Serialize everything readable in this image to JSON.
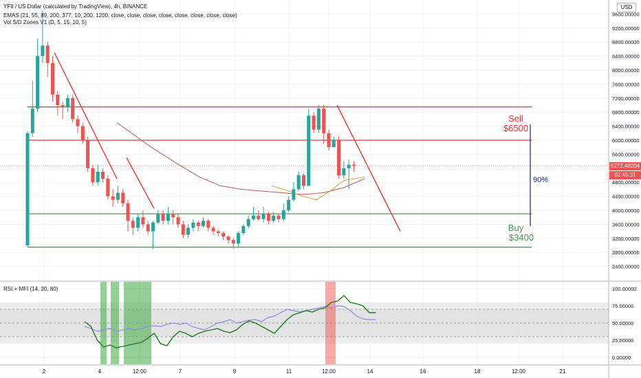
{
  "header": {
    "symbol_line": "YFII / US Dollar (calculated by TradingView), 4h, BINANCE",
    "ema_line": "EMAS (21, 55, 89, 200, 377, 10, 200, 1200, close, close, close, close, close, close, close, close)",
    "vol_line": "Vol S/D Zones V1 (D, 5, 15, 10, 5)",
    "currency": "USD"
  },
  "price_pane": {
    "current_price": "5272.48204",
    "countdown": "02:45:31",
    "colors": {
      "up": "#26a69a",
      "down": "#ef5350",
      "price_tag": "#ef5350",
      "countdown_tag": "#ef5350"
    }
  },
  "annotations": {
    "sell_label": "Sell",
    "sell_price": "$6500",
    "buy_label": "Buy",
    "buy_price": "$3400",
    "range_pct": "90%",
    "colors": {
      "sell": "#e53935",
      "buy": "#43a047",
      "range": "#1a237e"
    }
  },
  "oscillator": {
    "title": "RSI + MFI (14, 20, 80)"
  },
  "chart_data": [
    {
      "type": "candlestick",
      "ylim": [
        2000,
        10000
      ],
      "y_ticks": [
        "2400.00000",
        "2800.00000",
        "3200.00000",
        "3600.00000",
        "4000.00000",
        "4400.00000",
        "4800.00000",
        "5200.00000",
        "5600.00000",
        "6000.00000",
        "6400.00000",
        "6800.00000",
        "7200.00000",
        "7600.00000",
        "8000.00000",
        "8400.00000",
        "8800.00000",
        "9200.00000",
        "9600.00000"
      ],
      "x_ticks": [
        "2",
        "4",
        "12:00",
        "7",
        "9",
        "11",
        "12:00",
        "14",
        "16",
        "18",
        "12:00",
        "21"
      ],
      "candles": [
        [
          3000,
          6200,
          6250,
          2950
        ],
        [
          6200,
          6900,
          7700,
          6100
        ],
        [
          6900,
          8400,
          8900,
          6800
        ],
        [
          8400,
          8700,
          9700,
          8200
        ],
        [
          8700,
          8200,
          8800,
          7800
        ],
        [
          8200,
          7300,
          8400,
          7100
        ],
        [
          7300,
          7000,
          7400,
          6700
        ],
        [
          7000,
          6950,
          7100,
          6600
        ],
        [
          6950,
          7200,
          7300,
          6800
        ],
        [
          7200,
          6600,
          7300,
          6500
        ],
        [
          6600,
          6400,
          6700,
          6200
        ],
        [
          6400,
          6000,
          6500,
          5900
        ],
        [
          6000,
          5200,
          6100,
          5100
        ],
        [
          5200,
          4800,
          5300,
          4700
        ],
        [
          4800,
          5100,
          5300,
          4700
        ],
        [
          5100,
          4900,
          5200,
          4800
        ],
        [
          4900,
          4400,
          5000,
          4300
        ],
        [
          4400,
          4300,
          4600,
          4100
        ],
        [
          4300,
          4500,
          4700,
          4200
        ],
        [
          4500,
          4200,
          4600,
          4100
        ],
        [
          4200,
          3700,
          4300,
          3400
        ],
        [
          3700,
          3500,
          3800,
          3300
        ],
        [
          3500,
          3800,
          3900,
          3400
        ],
        [
          3800,
          3600,
          4000,
          3500
        ],
        [
          3600,
          3400,
          3700,
          3300
        ],
        [
          3400,
          3650,
          3700,
          2900
        ],
        [
          3650,
          3900,
          4000,
          3600
        ],
        [
          3900,
          3700,
          4000,
          3600
        ],
        [
          3700,
          3900,
          4100,
          3600
        ],
        [
          3900,
          3800,
          4000,
          3600
        ],
        [
          3800,
          3600,
          3900,
          3500
        ],
        [
          3600,
          3300,
          3700,
          3200
        ],
        [
          3300,
          3500,
          3600,
          3200
        ],
        [
          3500,
          3650,
          3750,
          3400
        ],
        [
          3650,
          3550,
          3700,
          3400
        ],
        [
          3550,
          3700,
          3800,
          3500
        ],
        [
          3700,
          3500,
          3750,
          3400
        ],
        [
          3500,
          3400,
          3550,
          3300
        ],
        [
          3400,
          3350,
          3450,
          3250
        ],
        [
          3350,
          3250,
          3400,
          3150
        ],
        [
          3250,
          3150,
          3300,
          3050
        ],
        [
          3150,
          3050,
          3200,
          2900
        ],
        [
          3050,
          3350,
          3400,
          2950
        ],
        [
          3350,
          3550,
          3600,
          3300
        ],
        [
          3550,
          3750,
          3850,
          3500
        ],
        [
          3750,
          3850,
          4100,
          3700
        ],
        [
          3850,
          3750,
          4000,
          3700
        ],
        [
          3750,
          3900,
          4100,
          3650
        ],
        [
          3900,
          3700,
          3950,
          3600
        ],
        [
          3700,
          3850,
          3950,
          3650
        ],
        [
          3850,
          3750,
          3900,
          3650
        ],
        [
          3750,
          4000,
          4200,
          3700
        ],
        [
          4000,
          4300,
          4400,
          3950
        ],
        [
          4300,
          4600,
          4800,
          4250
        ],
        [
          4600,
          5000,
          5100,
          4550
        ],
        [
          5000,
          4700,
          5050,
          4600
        ],
        [
          4700,
          6700,
          6900,
          4700
        ],
        [
          6700,
          6300,
          6800,
          6200
        ],
        [
          6300,
          6900,
          7000,
          6200
        ],
        [
          6900,
          6200,
          7000,
          5900
        ],
        [
          6200,
          5800,
          6300,
          5700
        ],
        [
          5800,
          6000,
          6100,
          5800
        ],
        [
          6000,
          5000,
          6100,
          4900
        ],
        [
          5000,
          5200,
          5400,
          4900
        ],
        [
          5200,
          5300,
          5450,
          4600
        ],
        [
          5300,
          5272,
          5400,
          5100
        ]
      ],
      "ema_short": [
        [
          170,
          6500
        ],
        [
          220,
          5800
        ],
        [
          260,
          5300
        ],
        [
          290,
          4950
        ],
        [
          320,
          4700
        ],
        [
          350,
          4600
        ],
        [
          380,
          4550
        ],
        [
          410,
          4500
        ],
        [
          440,
          4450
        ],
        [
          470,
          4500
        ],
        [
          500,
          4650
        ],
        [
          530,
          4900
        ]
      ],
      "ema_long": [
        [
          395,
          4700
        ],
        [
          420,
          4550
        ],
        [
          440,
          4400
        ],
        [
          460,
          4300
        ],
        [
          480,
          4550
        ],
        [
          500,
          4850
        ],
        [
          530,
          4950
        ]
      ],
      "trendlines": [
        {
          "from": [
            2,
            8500
          ],
          "to": [
            40,
            4900
          ]
        },
        {
          "from": [
            44,
            5500
          ],
          "to": [
            56,
            4050
          ]
        },
        {
          "from": [
            116,
            7000
          ],
          "to": [
            140,
            3400
          ]
        }
      ],
      "levels": [
        {
          "name": "top",
          "price": 6950,
          "color": "#e53935"
        },
        {
          "name": "sell",
          "price": 6000,
          "color": "#e53935"
        },
        {
          "name": "buy",
          "price": 3900,
          "color": "#43a047"
        },
        {
          "name": "bottom",
          "price": 2950,
          "color": "#43a047"
        }
      ]
    },
    {
      "type": "line",
      "ylim": [
        -10,
        110
      ],
      "y_ticks": [
        "0.00000",
        "25.00000",
        "50.00000",
        "75.00000",
        "100.00000"
      ],
      "bands": {
        "overbought": 80,
        "oversold": 20,
        "mid_upper": 70,
        "mid_lower": 30
      },
      "rsi": [
        52,
        45,
        25,
        15,
        18,
        14,
        16,
        18,
        20,
        22,
        28,
        35,
        20,
        17,
        30,
        38,
        35,
        30,
        35,
        38,
        40,
        42,
        38,
        36,
        40,
        48,
        53,
        50,
        45,
        40,
        35,
        45,
        55,
        62,
        65,
        68,
        66,
        70,
        72,
        80,
        82,
        90,
        80,
        78,
        75,
        65,
        65
      ],
      "mfi": [
        45,
        42,
        38,
        40,
        42,
        38,
        40,
        42,
        40,
        42,
        45,
        46,
        45,
        48,
        50,
        48,
        50,
        45,
        42,
        40,
        45,
        50,
        52,
        55,
        50,
        52,
        54,
        55,
        52,
        58,
        60,
        65,
        70,
        68,
        66,
        68,
        70,
        72,
        74,
        72,
        75,
        74,
        68,
        60,
        56,
        55,
        55
      ],
      "highlight_green": [
        [
          146,
          155
        ],
        [
          161,
          173
        ],
        [
          180,
          220
        ]
      ],
      "highlight_red": [
        [
          473,
          488
        ]
      ],
      "colors": {
        "rsi": "#1b7a1b",
        "mfi": "#8c8ce6",
        "band": "#e0e0e0"
      }
    }
  ]
}
